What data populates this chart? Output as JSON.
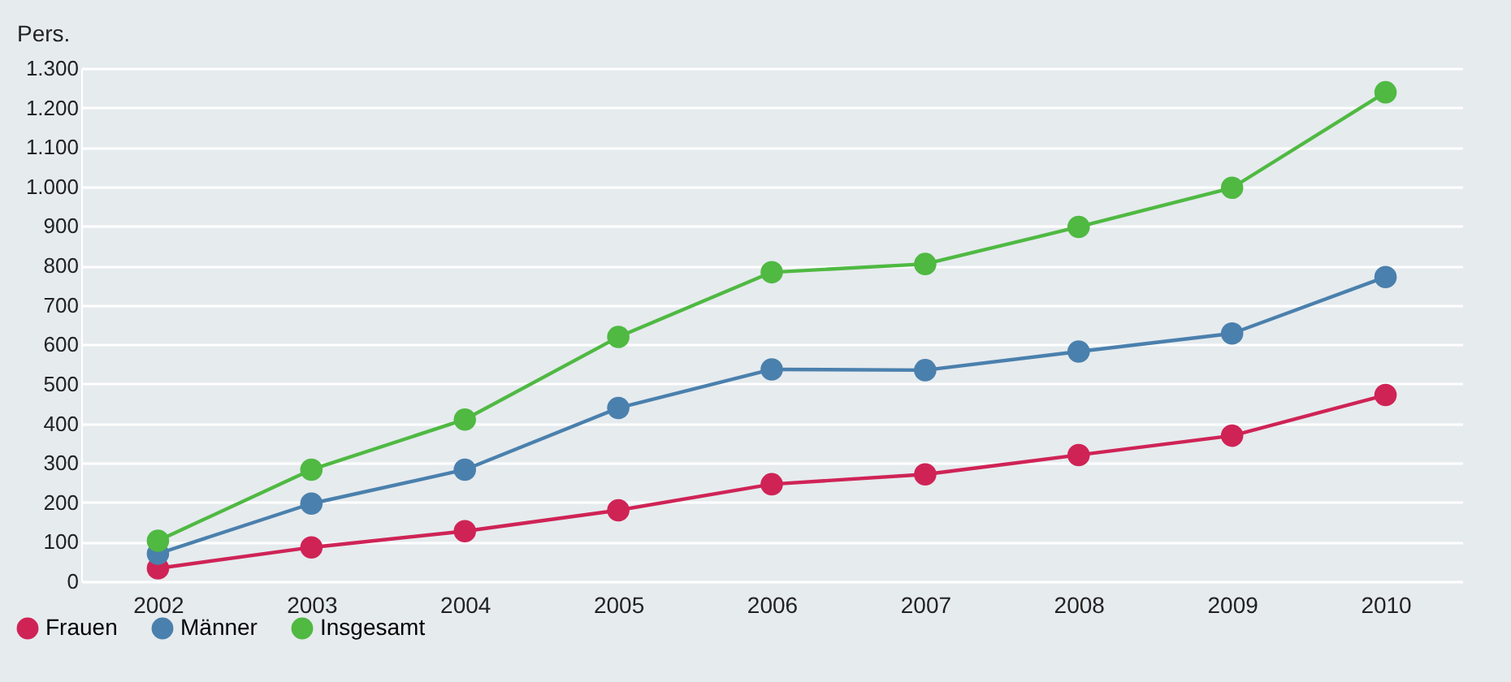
{
  "chart_data": {
    "type": "line",
    "ylabel": "Pers.",
    "categories": [
      "2002",
      "2003",
      "2004",
      "2005",
      "2006",
      "2007",
      "2008",
      "2009",
      "2010"
    ],
    "series": [
      {
        "name": "Frauen",
        "color": "#cf2356",
        "values": [
          33,
          86,
          127,
          180,
          246,
          271,
          320,
          369,
          472
        ]
      },
      {
        "name": "Männer",
        "color": "#4a80ad",
        "values": [
          70,
          197,
          283,
          439,
          537,
          535,
          582,
          628,
          771
        ]
      },
      {
        "name": "Insgesamt",
        "color": "#4fb942",
        "values": [
          103,
          283,
          410,
          619,
          783,
          804,
          898,
          997,
          1239
        ]
      }
    ],
    "ylim": [
      0,
      1300
    ],
    "yticks": [
      0,
      100,
      200,
      300,
      400,
      500,
      600,
      700,
      800,
      900,
      {
        "value": 1000,
        "label": "1.000"
      },
      {
        "value": 1100,
        "label": "1.100"
      },
      {
        "value": 1200,
        "label": "1.200"
      },
      {
        "value": 1300,
        "label": "1.300"
      }
    ],
    "grid": "y",
    "legend": "bottom left",
    "marker": "circle",
    "line_style": "solid"
  }
}
